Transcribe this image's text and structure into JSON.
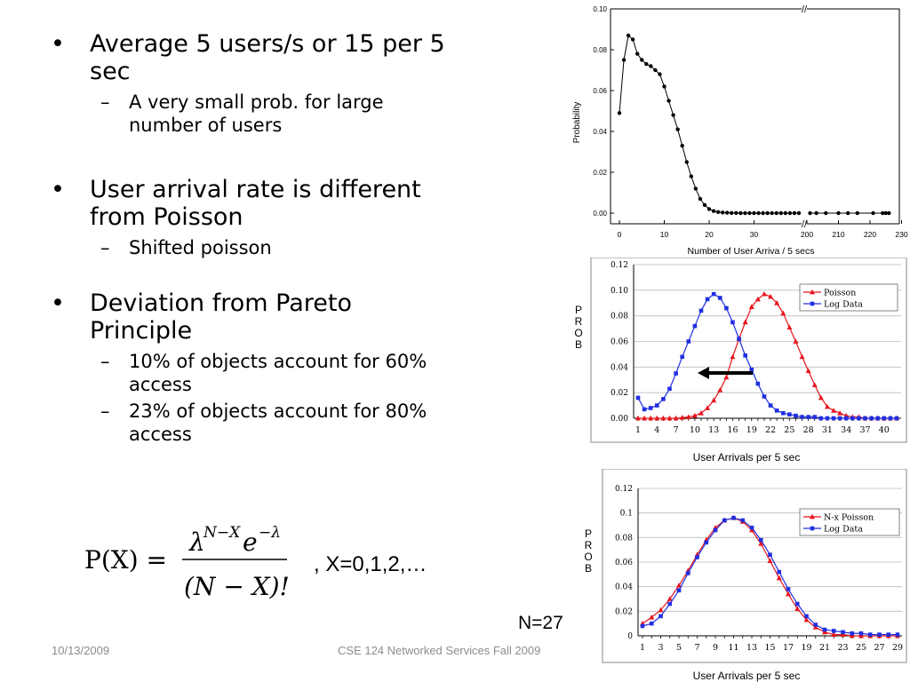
{
  "bullets": [
    {
      "text": "Average 5 users/s or 15 per 5 sec",
      "subs": [
        "A very small prob. for large number of users"
      ]
    },
    {
      "text": "User arrival rate is different from Poisson",
      "subs": [
        "Shifted poisson"
      ]
    },
    {
      "text": "Deviation from Pareto Principle",
      "subs": [
        "10% of objects account for 60% access",
        "23% of objects account for 80% access"
      ]
    }
  ],
  "formula": {
    "lhs": "P(X) =",
    "numerator": "λ",
    "exponent": "N−X",
    "numerator_tail": "e",
    "exp2": "−λ",
    "denominator": "(N − X)!",
    "suffix": ",  X=0,1,2,…"
  },
  "footer": {
    "date": "10/13/2009",
    "course": "CSE 124 Networked Services Fall 2009"
  },
  "n_label": "N=27",
  "chart_data": [
    {
      "type": "line",
      "xlabel": "Number of User Arriva / 5 secs",
      "ylabel": "Probability",
      "ylim": [
        0,
        0.1
      ],
      "yticks": [
        "0.00",
        "0.02",
        "0.04",
        "0.06",
        "0.08",
        "0.10"
      ],
      "xticks_left": [
        "0",
        "10",
        "20",
        "30"
      ],
      "xticks_right": [
        "200",
        "210",
        "220",
        "230"
      ],
      "axis_break": "//",
      "series": [
        {
          "x": [
            0,
            1,
            2,
            3,
            4,
            5,
            6,
            7,
            8,
            9,
            10,
            11,
            12,
            13,
            14,
            15,
            16,
            17,
            18,
            19,
            20,
            21,
            22,
            23,
            24,
            25,
            26,
            27,
            28,
            29,
            30,
            31,
            32,
            33,
            34,
            35,
            36,
            37,
            38,
            39,
            40
          ],
          "y": [
            0.049,
            0.075,
            0.087,
            0.085,
            0.078,
            0.075,
            0.073,
            0.072,
            0.07,
            0.068,
            0.062,
            0.055,
            0.048,
            0.041,
            0.033,
            0.025,
            0.018,
            0.012,
            0.007,
            0.004,
            0.002,
            0.001,
            0.0005,
            0.0003,
            0.0002,
            0.0001,
            0.0001,
            0,
            0,
            0,
            0,
            0,
            0,
            0,
            0,
            0,
            0,
            0,
            0,
            0,
            0
          ]
        },
        {
          "x": [
            201,
            203,
            206,
            210,
            213,
            216,
            221,
            224,
            225,
            226
          ],
          "y": [
            0,
            0,
            0,
            0,
            0,
            0,
            0,
            0,
            0,
            0
          ]
        }
      ]
    },
    {
      "type": "line",
      "ylabel": "PROB",
      "xlabel": "User Arrivals per 5 sec",
      "ylim": [
        0,
        0.12
      ],
      "yticks": [
        "0.00",
        "0.02",
        "0.04",
        "0.06",
        "0.08",
        "0.10",
        "0.12"
      ],
      "xticks": [
        "1",
        "4",
        "7",
        "10",
        "13",
        "16",
        "19",
        "22",
        "25",
        "28",
        "31",
        "34",
        "37",
        "40"
      ],
      "categories_count": 42,
      "series": [
        {
          "name": "Poisson",
          "color": "#e8141c",
          "marker": "triangle",
          "values": [
            0,
            0,
            0,
            0,
            0,
            0,
            0,
            0.0005,
            0.001,
            0.002,
            0.004,
            0.008,
            0.014,
            0.022,
            0.032,
            0.048,
            0.062,
            0.075,
            0.087,
            0.093,
            0.097,
            0.095,
            0.09,
            0.082,
            0.071,
            0.06,
            0.048,
            0.037,
            0.026,
            0.016,
            0.009,
            0.006,
            0.004,
            0.002,
            0.001,
            0.001,
            0,
            0,
            0,
            0,
            0,
            0
          ]
        },
        {
          "name": "Log Data",
          "color": "#1f2fe0",
          "marker": "square",
          "values": [
            0.016,
            0.007,
            0.008,
            0.01,
            0.015,
            0.023,
            0.035,
            0.048,
            0.06,
            0.072,
            0.084,
            0.093,
            0.097,
            0.094,
            0.086,
            0.075,
            0.062,
            0.049,
            0.038,
            0.027,
            0.017,
            0.01,
            0.006,
            0.004,
            0.003,
            0.002,
            0.001,
            0.001,
            0.001,
            0,
            0,
            0,
            0,
            0,
            0,
            0,
            0,
            0,
            0,
            0,
            0,
            0
          ]
        }
      ]
    },
    {
      "type": "line",
      "ylabel": "PROB",
      "xlabel": "User Arrivals per 5 sec",
      "ylim": [
        0,
        0.12
      ],
      "yticks": [
        "0",
        "0.02",
        "0.04",
        "0.06",
        "0.08",
        "0.1",
        "0.12"
      ],
      "xticks": [
        "1",
        "3",
        "5",
        "7",
        "9",
        "11",
        "13",
        "15",
        "17",
        "19",
        "21",
        "23",
        "25",
        "27",
        "29"
      ],
      "categories_count": 29,
      "series": [
        {
          "name": "N-x Poisson",
          "color": "#e8141c",
          "marker": "triangle",
          "values": [
            0.01,
            0.015,
            0.021,
            0.03,
            0.041,
            0.053,
            0.066,
            0.078,
            0.088,
            0.094,
            0.096,
            0.093,
            0.086,
            0.075,
            0.061,
            0.047,
            0.034,
            0.022,
            0.013,
            0.007,
            0.003,
            0.001,
            0.001,
            0,
            0,
            0,
            0,
            0,
            0
          ]
        },
        {
          "name": "Log Data",
          "color": "#1f2fe0",
          "marker": "square",
          "values": [
            0.008,
            0.01,
            0.016,
            0.026,
            0.037,
            0.051,
            0.064,
            0.076,
            0.086,
            0.094,
            0.096,
            0.094,
            0.088,
            0.078,
            0.066,
            0.052,
            0.038,
            0.026,
            0.016,
            0.009,
            0.005,
            0.004,
            0.003,
            0.002,
            0.002,
            0.001,
            0.001,
            0.001,
            0.001
          ]
        }
      ]
    }
  ]
}
